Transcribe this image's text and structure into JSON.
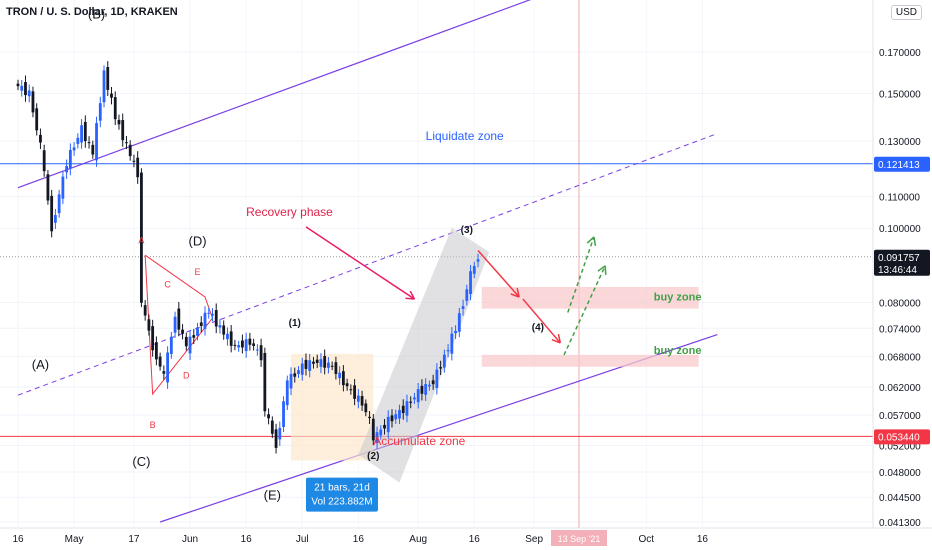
{
  "header": {
    "symbol_line": "TRON / U. S. Dollar, 1D, KRAKEN",
    "currency_button": "USD"
  },
  "colors": {
    "candle_up": "#2962ff",
    "candle_down": "#131722",
    "channel": "#7b3fe4",
    "accumulate_line": "#f23645",
    "liquidate_line": "#2962ff",
    "buy_zone_fill": "#f8c9cc",
    "recovery_arrow": "#e91e63",
    "green_arrow": "#43a047"
  },
  "chart_data": {
    "type": "candlestick",
    "y_scale": "log",
    "y_ticks": [
      "0.170000",
      "0.150000",
      "0.130000",
      "0.110000",
      "0.100000",
      "0.080000",
      "0.074000",
      "0.068000",
      "0.062000",
      "0.057000",
      "0.052000",
      "0.048000",
      "0.044500",
      "0.041300"
    ],
    "y_tick_values": [
      0.17,
      0.15,
      0.13,
      0.11,
      0.1,
      0.08,
      0.074,
      0.068,
      0.062,
      0.057,
      0.052,
      0.048,
      0.0445,
      0.0413
    ],
    "x_ticks": [
      "16",
      "May",
      "17",
      "Jun",
      "16",
      "Jul",
      "16",
      "Aug",
      "16",
      "Sep",
      "Oct",
      "16"
    ],
    "x_tick_dates": [
      "2021-04-16",
      "2021-05-01",
      "2021-05-17",
      "2021-06-01",
      "2021-06-16",
      "2021-07-01",
      "2021-07-16",
      "2021-08-01",
      "2021-08-16",
      "2021-09-01",
      "2021-10-01",
      "2021-10-16"
    ],
    "price_labels": [
      {
        "label": "0.121413",
        "value": 0.121413,
        "color": "#2962ff"
      },
      {
        "label": "0.091757",
        "value": 0.091757,
        "color": "#131722",
        "sub": "13:46:44"
      },
      {
        "label": "0.053440",
        "value": 0.05344,
        "color": "#f23645"
      }
    ],
    "crosshair_date_label": "13 Sep '21",
    "crosshair_date": "2021-09-13",
    "close_prices": [
      {
        "date": "2021-04-16",
        "close": 0.15
      },
      {
        "date": "2021-04-20",
        "close": 0.128
      },
      {
        "date": "2021-04-23",
        "close": 0.1
      },
      {
        "date": "2021-04-26",
        "close": 0.122
      },
      {
        "date": "2021-04-30",
        "close": 0.135
      },
      {
        "date": "2021-05-04",
        "close": 0.125
      },
      {
        "date": "2021-05-07",
        "close": 0.16
      },
      {
        "date": "2021-05-10",
        "close": 0.14
      },
      {
        "date": "2021-05-13",
        "close": 0.128
      },
      {
        "date": "2021-05-16",
        "close": 0.118
      },
      {
        "date": "2021-05-19",
        "close": 0.08
      },
      {
        "date": "2021-05-20",
        "close": 0.07
      },
      {
        "date": "2021-05-23",
        "close": 0.064
      },
      {
        "date": "2021-05-26",
        "close": 0.077
      },
      {
        "date": "2021-05-29",
        "close": 0.07
      },
      {
        "date": "2021-06-01",
        "close": 0.074
      },
      {
        "date": "2021-06-04",
        "close": 0.078
      },
      {
        "date": "2021-06-07",
        "close": 0.074
      },
      {
        "date": "2021-06-10",
        "close": 0.07
      },
      {
        "date": "2021-06-14",
        "close": 0.071
      },
      {
        "date": "2021-06-18",
        "close": 0.068
      },
      {
        "date": "2021-06-21",
        "close": 0.058
      },
      {
        "date": "2021-06-22",
        "close": 0.052
      },
      {
        "date": "2021-06-25",
        "close": 0.063
      },
      {
        "date": "2021-06-28",
        "close": 0.066
      },
      {
        "date": "2021-07-02",
        "close": 0.067
      },
      {
        "date": "2021-07-06",
        "close": 0.066
      },
      {
        "date": "2021-07-10",
        "close": 0.062
      },
      {
        "date": "2021-07-14",
        "close": 0.059
      },
      {
        "date": "2021-07-18",
        "close": 0.056
      },
      {
        "date": "2021-07-20",
        "close": 0.053
      },
      {
        "date": "2021-07-21",
        "close": 0.056
      },
      {
        "date": "2021-07-25",
        "close": 0.058
      },
      {
        "date": "2021-07-29",
        "close": 0.061
      },
      {
        "date": "2021-08-02",
        "close": 0.063
      },
      {
        "date": "2021-08-06",
        "close": 0.068
      },
      {
        "date": "2021-08-09",
        "close": 0.074
      },
      {
        "date": "2021-08-12",
        "close": 0.08
      },
      {
        "date": "2021-08-14",
        "close": 0.087
      },
      {
        "date": "2021-08-16",
        "close": 0.091757
      }
    ]
  },
  "annotations": {
    "wave_labels": [
      {
        "text": "(A)",
        "date": "2021-04-22",
        "price": 0.0655
      },
      {
        "text": "(B)",
        "date": "2021-05-07",
        "price": 0.188
      },
      {
        "text": "(C)",
        "date": "2021-05-19",
        "price": 0.0489
      },
      {
        "text": "(D)",
        "date": "2021-06-03",
        "price": 0.095
      },
      {
        "text": "(E)",
        "date": "2021-06-23",
        "price": 0.0442
      },
      {
        "text": "(1)",
        "date": "2021-06-29",
        "price": 0.0745
      },
      {
        "text": "(2)",
        "date": "2021-07-20",
        "price": 0.0499
      },
      {
        "text": "(3)",
        "date": "2021-08-14",
        "price": 0.0985
      },
      {
        "text": "(4)",
        "date": "2021-09-02",
        "price": 0.0735
      }
    ],
    "triangle_labels": [
      {
        "text": "A",
        "date": "2021-05-19",
        "price": 0.0955
      },
      {
        "text": "B",
        "date": "2021-05-22",
        "price": 0.0548
      },
      {
        "text": "C",
        "date": "2021-05-26",
        "price": 0.0837
      },
      {
        "text": "D",
        "date": "2021-05-31",
        "price": 0.0636
      },
      {
        "text": "E",
        "date": "2021-06-03",
        "price": 0.0869
      }
    ],
    "zones": {
      "liquidate": "Liquidate zone",
      "accumulate": "Accumulate zone",
      "recovery": "Recovery phase",
      "buy_zone_1": "buy zone",
      "buy_zone_2": "buy zone"
    },
    "measure_box": {
      "line1": "21 bars, 21d",
      "line2": "Vol 223.882M"
    }
  }
}
